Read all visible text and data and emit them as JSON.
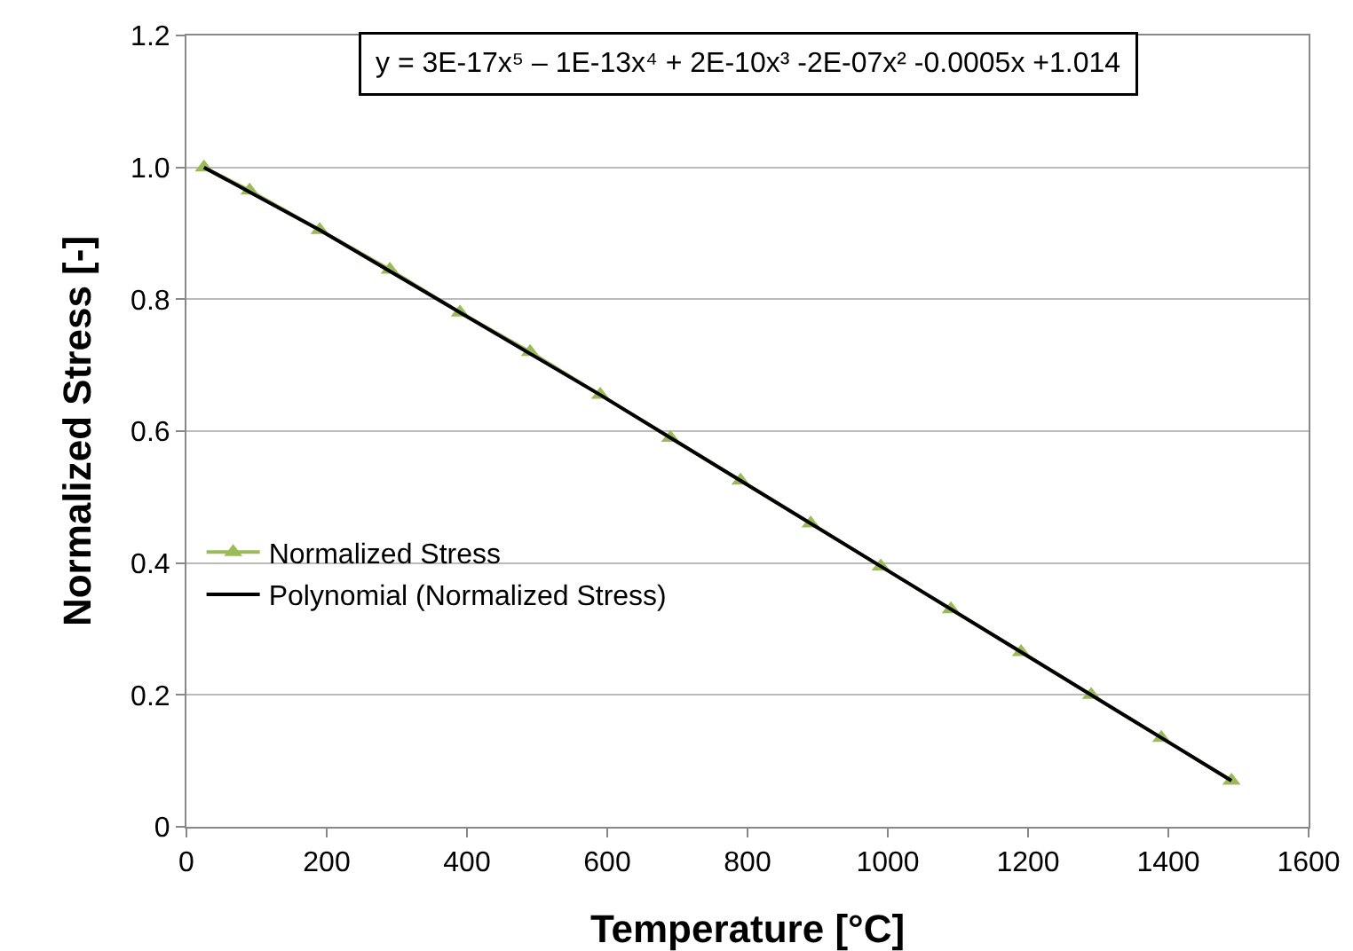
{
  "chart_data": {
    "type": "scatter",
    "xlabel": "Temperature [°C]",
    "ylabel": "Normalized Stress [-]",
    "x": [
      25,
      90,
      190,
      290,
      390,
      490,
      590,
      690,
      790,
      890,
      990,
      1090,
      1190,
      1290,
      1390,
      1490
    ],
    "series": [
      {
        "name": "Normalized Stress",
        "color": "#9bbb59",
        "marker": "triangle",
        "line_style": "solid",
        "values": [
          1.0,
          0.965,
          0.905,
          0.845,
          0.78,
          0.72,
          0.655,
          0.59,
          0.525,
          0.46,
          0.395,
          0.33,
          0.265,
          0.2,
          0.135,
          0.07
        ]
      },
      {
        "name": "Polynomial (Normalized Stress)",
        "type": "line",
        "color": "#000000",
        "marker": "none",
        "line_style": "solid",
        "x": [
          25,
          190,
          390,
          590,
          790,
          990,
          1190,
          1390,
          1490
        ],
        "values": [
          1.0,
          0.905,
          0.78,
          0.655,
          0.525,
          0.395,
          0.265,
          0.135,
          0.07
        ]
      }
    ],
    "xlim": [
      0,
      1600
    ],
    "xticks": [
      0,
      200,
      400,
      600,
      800,
      1000,
      1200,
      1400,
      1600
    ],
    "ylim": [
      0,
      1.2
    ],
    "yticks": [
      0,
      {
        "value": 0.2,
        "label": "0.2"
      },
      {
        "value": 0.4,
        "label": "0.4"
      },
      {
        "value": 0.6,
        "label": "0.6"
      },
      {
        "value": 0.8,
        "label": "0.8"
      },
      {
        "value": 1.0,
        "label": "1.0"
      },
      {
        "value": 1.2,
        "label": "1.2"
      }
    ],
    "grid": "y",
    "legend": "left",
    "annotations": [
      "y = 3E-17x⁵ – 1E-13x⁴ + 2E-10x³ -2E-07x² -0.0005x +1.014"
    ]
  }
}
